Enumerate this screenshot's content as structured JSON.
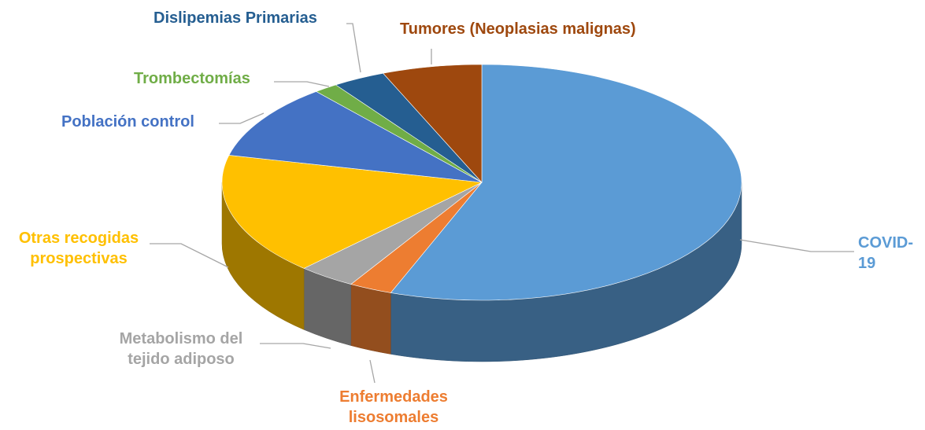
{
  "chart_data": {
    "type": "pie3d",
    "series": [
      {
        "name": "COVID-19",
        "color": "#5b9bd5",
        "values": [
          55.7
        ]
      },
      {
        "name": "Enfermedades lisosomales",
        "color": "#ed7d31",
        "values": [
          2.7
        ]
      },
      {
        "name": "Metabolismo del tejido adiposo",
        "color": "#a5a5a5",
        "values": [
          3.6
        ]
      },
      {
        "name": "Otras recogidas prospectivas",
        "color": "#ffc000",
        "values": [
          16.7
        ]
      },
      {
        "name": "Población control",
        "color": "#4472c4",
        "values": [
          10.3
        ]
      },
      {
        "name": "Trombectomías",
        "color": "#70ad47",
        "values": [
          1.5
        ]
      },
      {
        "name": "Dislipemias Primarias",
        "color": "#255e91",
        "values": [
          3.3
        ]
      },
      {
        "name": "Tumores (Neoplasias malignas)",
        "color": "#9e480e",
        "values": [
          6.2
        ]
      }
    ]
  }
}
